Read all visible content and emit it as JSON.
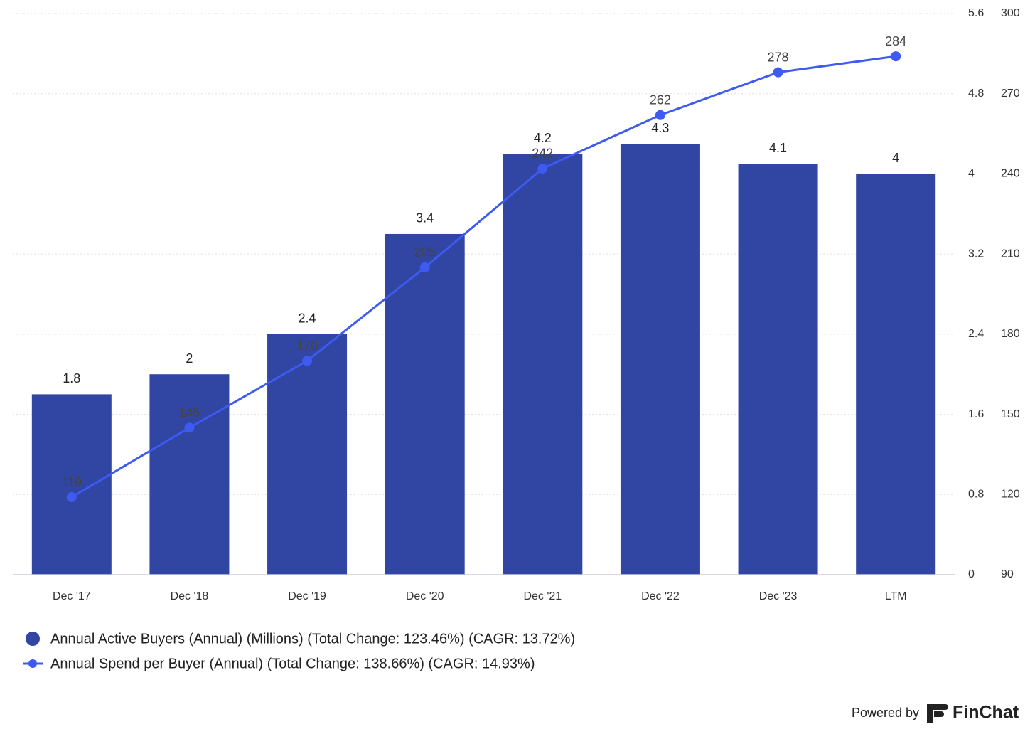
{
  "chart_data": {
    "type": "bar",
    "categories": [
      "Dec '17",
      "Dec '18",
      "Dec '19",
      "Dec '20",
      "Dec '21",
      "Dec '22",
      "Dec '23",
      "LTM"
    ],
    "series": [
      {
        "name": "Annual Active Buyers (Annual) (Millions) (Total Change: 123.46%) (CAGR: 13.72%)",
        "type": "bar",
        "color": "#3145a3",
        "values": [
          1.8,
          2,
          2.4,
          3.4,
          4.2,
          4.3,
          4.1,
          4
        ]
      },
      {
        "name": "Annual Spend per Buyer (Annual) (Total Change: 138.66%) (CAGR: 14.93%)",
        "type": "line",
        "axis": "y2",
        "color": "#3d5af1",
        "values": [
          119,
          145,
          170,
          205,
          242,
          262,
          278,
          284
        ]
      }
    ],
    "ylim": [
      0,
      5.6
    ],
    "yticks": [
      0,
      0.8,
      1.6,
      2.4,
      3.2,
      4,
      4.8,
      5.6
    ],
    "y2lim": [
      90,
      300
    ],
    "y2ticks": [
      90,
      120,
      150,
      180,
      210,
      240,
      270,
      300
    ],
    "grid": true
  },
  "footer": {
    "powered_by": "Powered by",
    "brand": "FinChat"
  }
}
